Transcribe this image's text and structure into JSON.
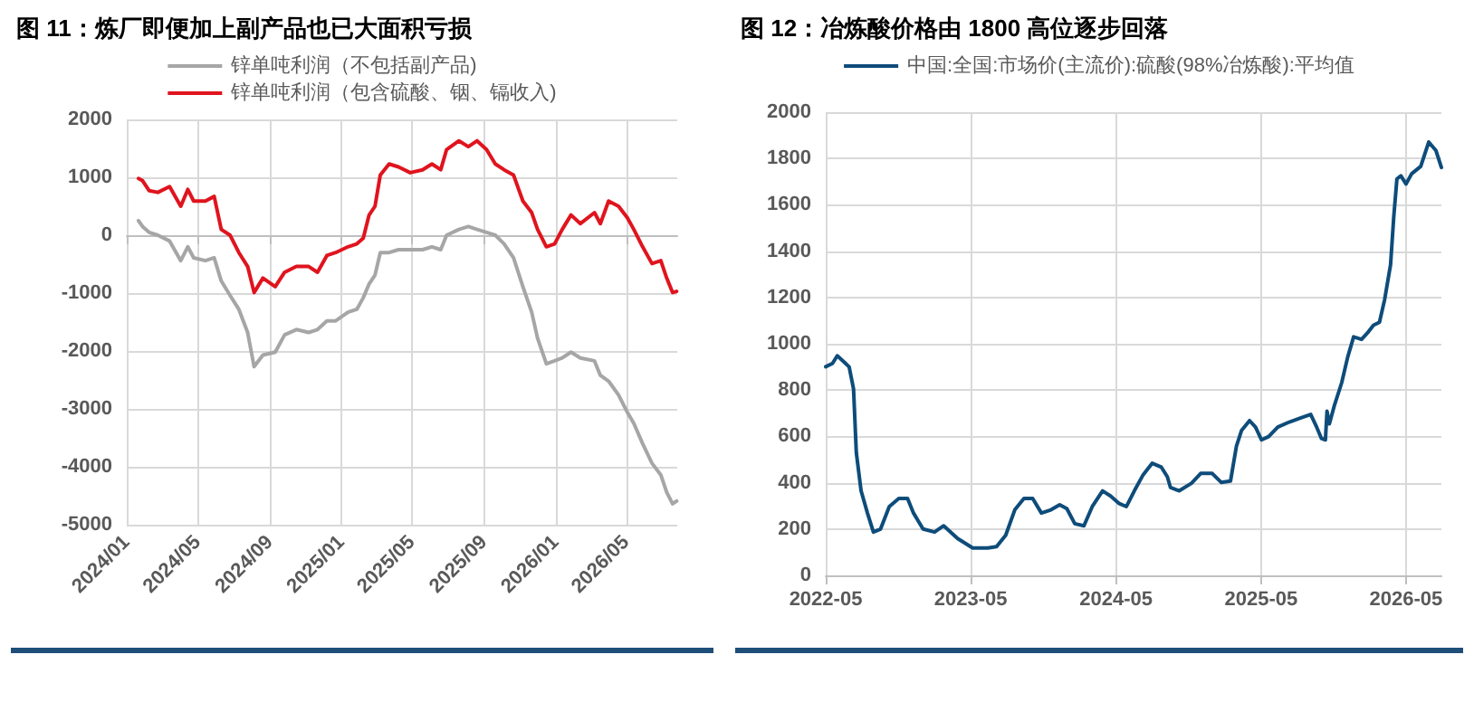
{
  "chart_data": [
    {
      "type": "line",
      "title": "图 11：炼厂即便加上副产品也已大面积亏损",
      "series": [
        {
          "name": "锌单吨利润（不包括副产品)",
          "color": "#a6a6a6",
          "x": [
            "2024-01-21",
            "2024-01-28",
            "2024-02-08",
            "2024-02-23",
            "2024-03-14",
            "2024-04-02",
            "2024-04-14",
            "2024-04-24",
            "2024-05-14",
            "2024-05-29",
            "2024-06-10",
            "2024-06-25",
            "2024-07-10",
            "2024-07-25",
            "2024-08-05",
            "2024-08-20",
            "2024-09-10",
            "2024-09-26",
            "2024-10-16",
            "2024-11-06",
            "2024-11-21",
            "2024-12-07",
            "2024-12-22",
            "2025-01-12",
            "2025-01-27",
            "2025-02-07",
            "2025-02-17",
            "2025-02-27",
            "2025-03-08",
            "2025-03-23",
            "2025-04-08",
            "2025-04-28",
            "2025-05-19",
            "2025-06-04",
            "2025-06-19",
            "2025-06-29",
            "2025-07-20",
            "2025-08-05",
            "2025-08-20",
            "2025-09-05",
            "2025-09-20",
            "2025-10-05",
            "2025-10-21",
            "2025-11-06",
            "2025-11-21",
            "2025-12-01",
            "2025-12-16",
            "2025-12-30",
            "2026-01-12",
            "2026-01-27",
            "2026-02-12",
            "2026-03-08",
            "2026-03-18",
            "2026-04-01",
            "2026-04-18",
            "2026-05-03",
            "2026-05-14",
            "2026-05-29",
            "2026-06-14",
            "2026-06-29",
            "2026-07-09",
            "2026-07-19",
            "2026-07-26"
          ],
          "values": [
            250,
            150,
            50,
            0,
            -100,
            -440,
            -200,
            -390,
            -440,
            -390,
            -790,
            -1040,
            -1280,
            -1680,
            -2270,
            -2070,
            -2020,
            -1720,
            -1630,
            -1680,
            -1630,
            -1480,
            -1480,
            -1330,
            -1280,
            -1080,
            -840,
            -690,
            -300,
            -300,
            -250,
            -250,
            -250,
            -200,
            -250,
            0,
            100,
            150,
            100,
            50,
            0,
            -150,
            -390,
            -890,
            -1330,
            -1780,
            -2220,
            -2170,
            -2120,
            -2020,
            -2120,
            -2170,
            -2420,
            -2520,
            -2760,
            -3060,
            -3250,
            -3600,
            -3940,
            -4140,
            -4440,
            -4640,
            -4590
          ]
        },
        {
          "name": "锌单吨利润（包含硫酸、铟、镉收入)",
          "color": "#e0141e",
          "x": [
            "2024-01-21",
            "2024-01-28",
            "2024-02-08",
            "2024-02-23",
            "2024-03-14",
            "2024-04-02",
            "2024-04-14",
            "2024-04-24",
            "2024-05-14",
            "2024-05-29",
            "2024-06-10",
            "2024-06-25",
            "2024-07-10",
            "2024-07-25",
            "2024-08-05",
            "2024-08-20",
            "2024-09-10",
            "2024-09-26",
            "2024-10-16",
            "2024-11-06",
            "2024-11-21",
            "2024-12-07",
            "2024-12-22",
            "2025-01-12",
            "2025-01-27",
            "2025-02-07",
            "2025-02-17",
            "2025-02-27",
            "2025-03-08",
            "2025-03-23",
            "2025-04-08",
            "2025-04-28",
            "2025-05-19",
            "2025-06-04",
            "2025-06-19",
            "2025-06-29",
            "2025-07-20",
            "2025-08-05",
            "2025-08-20",
            "2025-09-05",
            "2025-09-20",
            "2025-10-05",
            "2025-10-21",
            "2025-11-06",
            "2025-11-21",
            "2025-12-01",
            "2025-12-16",
            "2025-12-30",
            "2026-01-12",
            "2026-01-27",
            "2026-02-12",
            "2026-03-08",
            "2026-03-18",
            "2026-04-01",
            "2026-04-18",
            "2026-05-03",
            "2026-05-14",
            "2026-05-29",
            "2026-06-14",
            "2026-06-29",
            "2026-07-09",
            "2026-07-19",
            "2026-07-26"
          ],
          "values": [
            980,
            940,
            770,
            740,
            840,
            500,
            790,
            590,
            590,
            670,
            100,
            0,
            -300,
            -540,
            -990,
            -740,
            -890,
            -640,
            -540,
            -540,
            -640,
            -350,
            -300,
            -200,
            -150,
            -50,
            350,
            500,
            1040,
            1230,
            1180,
            1080,
            1130,
            1230,
            1130,
            1480,
            1630,
            1530,
            1630,
            1480,
            1230,
            1130,
            1040,
            590,
            390,
            100,
            -200,
            -150,
            100,
            350,
            200,
            390,
            200,
            590,
            500,
            300,
            100,
            -200,
            -490,
            -440,
            -740,
            -990,
            -970
          ]
        }
      ],
      "xlim": [
        "2024-01-01",
        "2026-07-27"
      ],
      "xticks": [
        {
          "value": "2024-01",
          "label": "2024/01"
        },
        {
          "value": "2024-05",
          "label": "2024/05"
        },
        {
          "value": "2024-09",
          "label": "2024/09"
        },
        {
          "value": "2025-01",
          "label": "2025/01"
        },
        {
          "value": "2025-05",
          "label": "2025/05"
        },
        {
          "value": "2025-09",
          "label": "2025/09"
        },
        {
          "value": "2026-01",
          "label": "2026/01"
        },
        {
          "value": "2026-05",
          "label": "2026/05"
        }
      ],
      "ylim": [
        -5000,
        2000
      ],
      "yticks": [
        -5000,
        -4000,
        -3000,
        -2000,
        -1000,
        0,
        1000,
        2000
      ],
      "grid": true,
      "legend": "top",
      "marker": "none",
      "line_style": "solid"
    },
    {
      "type": "line",
      "title": "图 12：冶炼酸价格由 1800 高位逐步回落",
      "series": [
        {
          "name": "中国:全国:市场价(主流价):硫酸(98%冶炼酸):平均值",
          "color": "#0e4c7a",
          "x": [
            "2022-05-01",
            "2022-05-18",
            "2022-05-30",
            "2022-06-17",
            "2022-06-29",
            "2022-07-10",
            "2022-07-17",
            "2022-07-29",
            "2022-08-14",
            "2022-08-29",
            "2022-09-16",
            "2022-10-08",
            "2022-11-01",
            "2022-11-23",
            "2022-12-08",
            "2023-01-01",
            "2023-01-30",
            "2023-02-22",
            "2023-03-29",
            "2023-05-06",
            "2023-06-13",
            "2023-07-05",
            "2023-07-28",
            "2023-08-20",
            "2023-09-12",
            "2023-10-04",
            "2023-10-26",
            "2023-11-19",
            "2023-12-11",
            "2023-12-29",
            "2024-01-18",
            "2024-02-10",
            "2024-03-02",
            "2024-03-28",
            "2024-04-17",
            "2024-05-09",
            "2024-05-27",
            "2024-06-16",
            "2024-07-08",
            "2024-07-31",
            "2024-08-23",
            "2024-09-07",
            "2024-09-15",
            "2024-10-07",
            "2024-11-07",
            "2024-11-30",
            "2024-12-29",
            "2025-01-21",
            "2025-02-13",
            "2025-02-28",
            "2025-03-13",
            "2025-04-02",
            "2025-04-17",
            "2025-05-02",
            "2025-05-20",
            "2025-06-12",
            "2025-07-11",
            "2025-08-11",
            "2025-09-03",
            "2025-09-18",
            "2025-09-30",
            "2025-10-10",
            "2025-10-14",
            "2025-10-20",
            "2025-11-02",
            "2025-11-20",
            "2025-12-05",
            "2025-12-20",
            "2026-01-09",
            "2026-01-24",
            "2026-02-08",
            "2026-02-23",
            "2026-03-08",
            "2026-03-23",
            "2026-03-31",
            "2026-04-08",
            "2026-04-18",
            "2026-05-01",
            "2026-05-15",
            "2026-06-07",
            "2026-06-27",
            "2026-07-15",
            "2026-07-29"
          ],
          "values": [
            901,
            915,
            948,
            920,
            900,
            805,
            530,
            365,
            269,
            187,
            200,
            297,
            332,
            332,
            269,
            200,
            187,
            214,
            159,
            118,
            118,
            124,
            173,
            283,
            332,
            332,
            269,
            283,
            305,
            288,
            223,
            214,
            297,
            365,
            343,
            310,
            297,
            365,
            434,
            484,
            467,
            426,
            379,
            365,
            398,
            440,
            440,
            401,
            407,
            558,
            626,
            668,
            640,
            585,
            599,
            640,
            662,
            681,
            695,
            640,
            591,
            585,
            709,
            654,
            736,
            832,
            942,
            1030,
            1019,
            1047,
            1080,
            1093,
            1190,
            1341,
            1547,
            1712,
            1725,
            1690,
            1734,
            1766,
            1871,
            1835,
            1761
          ]
        }
      ],
      "xlim": [
        "2022-05-01",
        "2026-07-29"
      ],
      "xticks": [
        "2022-05",
        "2023-05",
        "2024-05",
        "2025-05",
        "2026-05"
      ],
      "ylim": [
        0,
        2000
      ],
      "yticks": [
        0,
        200,
        400,
        600,
        800,
        1000,
        1200,
        1400,
        1600,
        1800,
        2000
      ],
      "grid": true,
      "legend": "top",
      "marker": "none",
      "line_style": "solid"
    }
  ]
}
